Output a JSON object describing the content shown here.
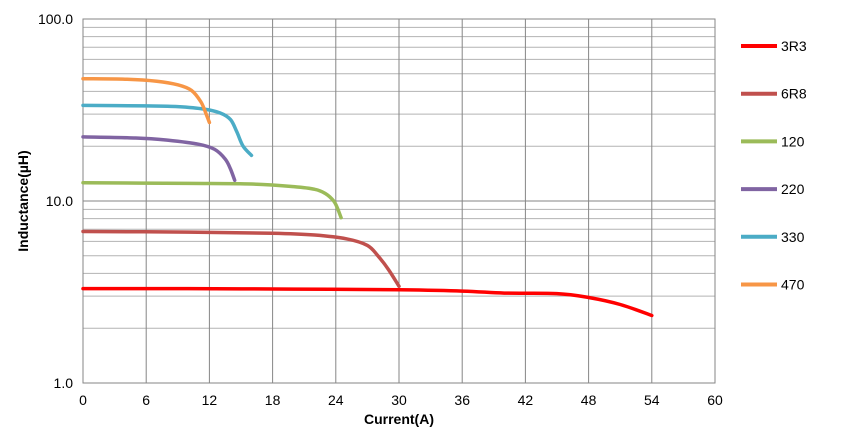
{
  "chart_data": {
    "type": "line",
    "title": "",
    "xlabel": "Current(A)",
    "ylabel": "Inductance(µH)",
    "xlim": [
      0,
      60
    ],
    "ylim": [
      1.0,
      100.0
    ],
    "y_scale": "log",
    "x_ticks": [
      0,
      6,
      12,
      18,
      24,
      30,
      36,
      42,
      48,
      54,
      60
    ],
    "y_ticks": [
      {
        "value": 1.0,
        "label": "1.0"
      },
      {
        "value": 10.0,
        "label": "10.0"
      },
      {
        "value": 100.0,
        "label": "100.0"
      }
    ],
    "grid": true,
    "legend_position": "right",
    "series": [
      {
        "name": "3R3",
        "color": "#FF0000",
        "points": [
          [
            0,
            3.3
          ],
          [
            10,
            3.3
          ],
          [
            20,
            3.28
          ],
          [
            30,
            3.25
          ],
          [
            36,
            3.2
          ],
          [
            40,
            3.12
          ],
          [
            45,
            3.1
          ],
          [
            48,
            2.95
          ],
          [
            51,
            2.7
          ],
          [
            54,
            2.35
          ]
        ]
      },
      {
        "name": "6R8",
        "color": "#C0504D",
        "points": [
          [
            0,
            6.8
          ],
          [
            10,
            6.75
          ],
          [
            18,
            6.65
          ],
          [
            22,
            6.5
          ],
          [
            25,
            6.2
          ],
          [
            27,
            5.7
          ],
          [
            28,
            5.0
          ],
          [
            29,
            4.2
          ],
          [
            30,
            3.4
          ]
        ]
      },
      {
        "name": "120",
        "color": "#9BBB59",
        "points": [
          [
            0,
            12.6
          ],
          [
            10,
            12.5
          ],
          [
            16,
            12.4
          ],
          [
            20,
            12.0
          ],
          [
            22,
            11.6
          ],
          [
            23,
            11.0
          ],
          [
            23.8,
            10.0
          ],
          [
            24.2,
            9.0
          ],
          [
            24.5,
            8.1
          ]
        ]
      },
      {
        "name": "220",
        "color": "#8064A2",
        "points": [
          [
            0,
            22.5
          ],
          [
            5,
            22.2
          ],
          [
            8,
            21.6
          ],
          [
            11,
            20.5
          ],
          [
            12.5,
            19.2
          ],
          [
            13.5,
            17.0
          ],
          [
            14,
            15.0
          ],
          [
            14.4,
            13.0
          ]
        ]
      },
      {
        "name": "330",
        "color": "#4BACC6",
        "points": [
          [
            0,
            33.5
          ],
          [
            6,
            33.3
          ],
          [
            9,
            33.0
          ],
          [
            11.5,
            32.0
          ],
          [
            13,
            30.5
          ],
          [
            14,
            28.0
          ],
          [
            14.6,
            24.0
          ],
          [
            15.2,
            20.0
          ],
          [
            16,
            17.8
          ]
        ]
      },
      {
        "name": "470",
        "color": "#F79646",
        "points": [
          [
            0,
            47.0
          ],
          [
            4,
            46.7
          ],
          [
            7,
            45.5
          ],
          [
            9,
            43.5
          ],
          [
            10.3,
            40.5
          ],
          [
            11.2,
            35.0
          ],
          [
            11.7,
            30.0
          ],
          [
            12,
            27.0
          ]
        ]
      }
    ]
  }
}
